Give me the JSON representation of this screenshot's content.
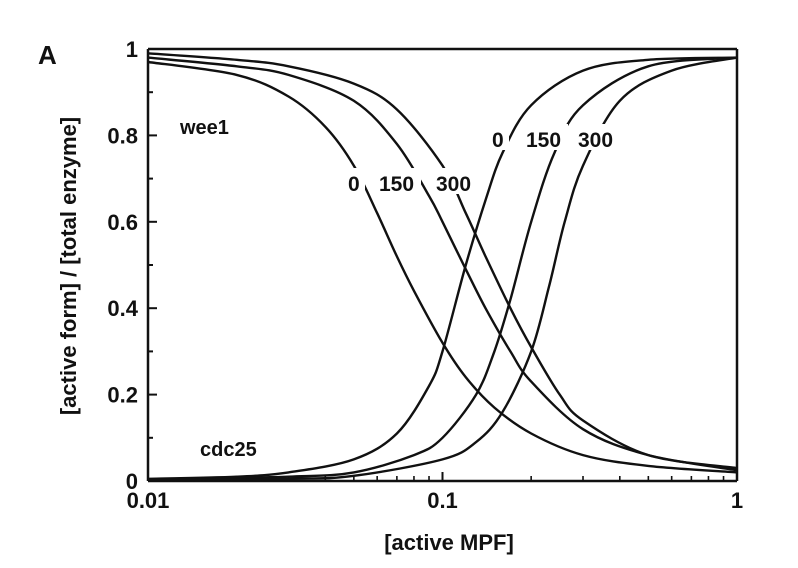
{
  "panel_label": "A",
  "chart_data": {
    "type": "line",
    "title": "",
    "xlabel": "[active MPF]",
    "ylabel": "[active form] / [total enzyme]",
    "xscale": "log",
    "xlim": [
      0.01,
      1
    ],
    "ylim": [
      0,
      1
    ],
    "x_ticks": [
      "0.01",
      "0.1",
      "1"
    ],
    "y_ticks": [
      "0",
      "0.2",
      "0.4",
      "0.6",
      "0.8",
      "1"
    ],
    "grid": false,
    "legend": "none",
    "series_labels": {
      "wee1": "wee1",
      "cdc25": "cdc25"
    },
    "curve_labels": {
      "wee1": [
        "0",
        "150",
        "300"
      ],
      "cdc25": [
        "0",
        "150",
        "300"
      ]
    },
    "series": [
      {
        "group": "wee1",
        "label": "0",
        "x": [
          0.01,
          0.02,
          0.03,
          0.04,
          0.05,
          0.06,
          0.07,
          0.08,
          0.1,
          0.12,
          0.15,
          0.2,
          0.3,
          0.5,
          1.0
        ],
        "y": [
          0.97,
          0.94,
          0.89,
          0.82,
          0.73,
          0.62,
          0.52,
          0.44,
          0.32,
          0.24,
          0.17,
          0.11,
          0.06,
          0.035,
          0.02
        ]
      },
      {
        "group": "wee1",
        "label": "150",
        "x": [
          0.01,
          0.02,
          0.03,
          0.05,
          0.07,
          0.09,
          0.1,
          0.12,
          0.14,
          0.17,
          0.2,
          0.3,
          0.5,
          1.0
        ],
        "y": [
          0.98,
          0.96,
          0.94,
          0.88,
          0.78,
          0.66,
          0.6,
          0.49,
          0.4,
          0.3,
          0.23,
          0.12,
          0.06,
          0.025
        ]
      },
      {
        "group": "wee1",
        "label": "300",
        "x": [
          0.01,
          0.02,
          0.03,
          0.05,
          0.07,
          0.1,
          0.12,
          0.14,
          0.17,
          0.2,
          0.25,
          0.3,
          0.5,
          1.0
        ],
        "y": [
          0.99,
          0.975,
          0.96,
          0.92,
          0.86,
          0.73,
          0.62,
          0.52,
          0.4,
          0.31,
          0.2,
          0.14,
          0.06,
          0.03
        ]
      },
      {
        "group": "cdc25",
        "label": "0",
        "x": [
          0.01,
          0.02,
          0.03,
          0.05,
          0.07,
          0.09,
          0.1,
          0.12,
          0.14,
          0.16,
          0.2,
          0.3,
          0.5,
          1.0
        ],
        "y": [
          0.005,
          0.01,
          0.02,
          0.05,
          0.11,
          0.22,
          0.3,
          0.5,
          0.65,
          0.76,
          0.87,
          0.95,
          0.975,
          0.98
        ]
      },
      {
        "group": "cdc25",
        "label": "150",
        "x": [
          0.01,
          0.03,
          0.05,
          0.08,
          0.1,
          0.13,
          0.15,
          0.17,
          0.2,
          0.24,
          0.3,
          0.5,
          1.0
        ],
        "y": [
          0.003,
          0.01,
          0.02,
          0.06,
          0.1,
          0.2,
          0.3,
          0.42,
          0.6,
          0.76,
          0.87,
          0.96,
          0.98
        ]
      },
      {
        "group": "cdc25",
        "label": "300",
        "x": [
          0.01,
          0.03,
          0.05,
          0.1,
          0.13,
          0.16,
          0.2,
          0.23,
          0.26,
          0.3,
          0.4,
          0.6,
          1.0
        ],
        "y": [
          0.002,
          0.005,
          0.012,
          0.05,
          0.09,
          0.16,
          0.3,
          0.45,
          0.6,
          0.73,
          0.88,
          0.95,
          0.98
        ]
      }
    ]
  }
}
